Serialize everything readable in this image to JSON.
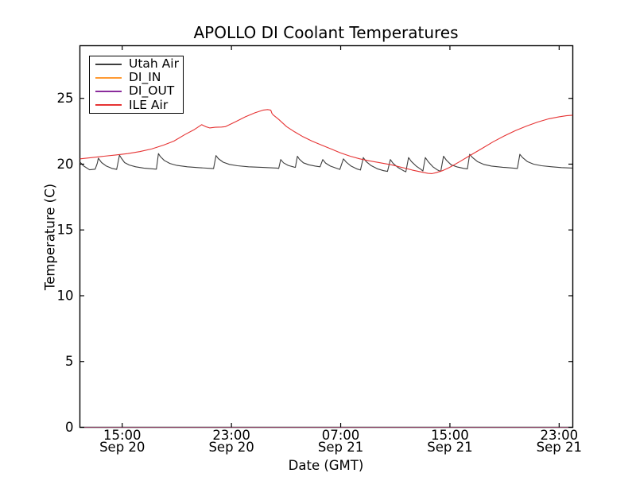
{
  "figure": {
    "background": "#ffffff",
    "axis_color": "#000000"
  },
  "chart_data": {
    "type": "line",
    "title": "APOLLO DI Coolant Temperatures",
    "xlabel": "Date (GMT)",
    "ylabel": "Temperature (C)",
    "grid": false,
    "legend_position": "upper-left",
    "axis_color": "#000000",
    "x_unit": "hours since Sep 20 00:00 GMT",
    "xlim": [
      11.9,
      48.0
    ],
    "ylim": [
      0,
      29
    ],
    "y_ticks": [
      0,
      5,
      10,
      15,
      20,
      25
    ],
    "x_ticks": [
      {
        "t": 15,
        "time": "15:00",
        "date": "Sep 20"
      },
      {
        "t": 23,
        "time": "23:00",
        "date": "Sep 20"
      },
      {
        "t": 31,
        "time": "07:00",
        "date": "Sep 21"
      },
      {
        "t": 39,
        "time": "15:00",
        "date": "Sep 21"
      },
      {
        "t": 47,
        "time": "23:00",
        "date": "Sep 21"
      }
    ],
    "series": [
      {
        "name": "Utah Air",
        "color": "#3d3d3d",
        "opacity": 1,
        "points": [
          [
            11.92,
            20.15
          ],
          [
            12.15,
            19.88
          ],
          [
            12.61,
            19.57
          ],
          [
            13.02,
            19.62
          ],
          [
            13.17,
            20.05
          ],
          [
            13.25,
            20.45
          ],
          [
            13.49,
            20.12
          ],
          [
            13.84,
            19.85
          ],
          [
            14.24,
            19.68
          ],
          [
            14.59,
            19.6
          ],
          [
            14.8,
            20.68
          ],
          [
            14.94,
            20.45
          ],
          [
            15.17,
            20.12
          ],
          [
            15.52,
            19.93
          ],
          [
            15.99,
            19.8
          ],
          [
            16.57,
            19.7
          ],
          [
            17.15,
            19.65
          ],
          [
            17.5,
            19.62
          ],
          [
            17.65,
            20.8
          ],
          [
            17.79,
            20.58
          ],
          [
            18.08,
            20.28
          ],
          [
            18.49,
            20.05
          ],
          [
            19.01,
            19.9
          ],
          [
            19.77,
            19.8
          ],
          [
            20.64,
            19.73
          ],
          [
            21.46,
            19.68
          ],
          [
            21.69,
            19.66
          ],
          [
            21.87,
            20.65
          ],
          [
            22.04,
            20.42
          ],
          [
            22.39,
            20.15
          ],
          [
            22.85,
            19.98
          ],
          [
            23.44,
            19.88
          ],
          [
            24.25,
            19.8
          ],
          [
            25.3,
            19.75
          ],
          [
            26.34,
            19.7
          ],
          [
            26.46,
            19.68
          ],
          [
            26.61,
            20.35
          ],
          [
            26.81,
            20.1
          ],
          [
            27.16,
            19.9
          ],
          [
            27.51,
            19.8
          ],
          [
            27.68,
            19.75
          ],
          [
            27.83,
            20.6
          ],
          [
            27.97,
            20.38
          ],
          [
            28.27,
            20.1
          ],
          [
            28.67,
            19.95
          ],
          [
            29.14,
            19.85
          ],
          [
            29.49,
            19.8
          ],
          [
            29.69,
            20.35
          ],
          [
            29.89,
            20.08
          ],
          [
            30.24,
            19.85
          ],
          [
            30.65,
            19.7
          ],
          [
            30.94,
            19.6
          ],
          [
            31.2,
            20.4
          ],
          [
            31.41,
            20.15
          ],
          [
            31.76,
            19.85
          ],
          [
            32.16,
            19.65
          ],
          [
            32.45,
            19.55
          ],
          [
            32.66,
            20.5
          ],
          [
            32.86,
            20.2
          ],
          [
            33.21,
            19.9
          ],
          [
            33.68,
            19.65
          ],
          [
            34.14,
            19.5
          ],
          [
            34.43,
            19.45
          ],
          [
            34.64,
            20.35
          ],
          [
            34.84,
            20.05
          ],
          [
            35.19,
            19.75
          ],
          [
            35.6,
            19.5
          ],
          [
            35.77,
            19.42
          ],
          [
            35.97,
            20.5
          ],
          [
            36.18,
            20.2
          ],
          [
            36.53,
            19.85
          ],
          [
            36.88,
            19.6
          ],
          [
            37.02,
            19.48
          ],
          [
            37.2,
            20.5
          ],
          [
            37.4,
            20.2
          ],
          [
            37.75,
            19.8
          ],
          [
            38.1,
            19.55
          ],
          [
            38.33,
            19.45
          ],
          [
            38.53,
            20.6
          ],
          [
            38.74,
            20.3
          ],
          [
            39.09,
            19.95
          ],
          [
            39.55,
            19.78
          ],
          [
            40.02,
            19.68
          ],
          [
            40.28,
            19.64
          ],
          [
            40.45,
            20.75
          ],
          [
            40.66,
            20.5
          ],
          [
            41.01,
            20.2
          ],
          [
            41.47,
            19.98
          ],
          [
            42.05,
            19.85
          ],
          [
            42.87,
            19.76
          ],
          [
            43.62,
            19.7
          ],
          [
            43.94,
            19.67
          ],
          [
            44.12,
            20.75
          ],
          [
            44.32,
            20.5
          ],
          [
            44.67,
            20.2
          ],
          [
            45.13,
            20.0
          ],
          [
            45.72,
            19.88
          ],
          [
            46.47,
            19.8
          ],
          [
            47.17,
            19.74
          ],
          [
            47.99,
            19.7
          ]
        ]
      },
      {
        "name": "DI_IN",
        "color": "#ff9a33",
        "opacity": 0.55,
        "points": [
          [
            11.92,
            0
          ],
          [
            47.99,
            0
          ]
        ]
      },
      {
        "name": "DI_OUT",
        "color": "#8a2d9c",
        "opacity": 0.55,
        "points": [
          [
            11.92,
            0
          ],
          [
            47.99,
            0
          ]
        ]
      },
      {
        "name": "ILE Air",
        "color": "#e63333",
        "opacity": 1,
        "points": [
          [
            11.92,
            20.4
          ],
          [
            12.79,
            20.5
          ],
          [
            13.66,
            20.6
          ],
          [
            14.53,
            20.7
          ],
          [
            15.41,
            20.8
          ],
          [
            16.28,
            20.95
          ],
          [
            17.15,
            21.15
          ],
          [
            18.03,
            21.45
          ],
          [
            18.78,
            21.75
          ],
          [
            19.6,
            22.25
          ],
          [
            20.24,
            22.6
          ],
          [
            20.82,
            23.0
          ],
          [
            21.11,
            22.85
          ],
          [
            21.4,
            22.75
          ],
          [
            21.81,
            22.8
          ],
          [
            22.27,
            22.82
          ],
          [
            22.56,
            22.85
          ],
          [
            23.26,
            23.2
          ],
          [
            24.02,
            23.6
          ],
          [
            24.72,
            23.9
          ],
          [
            25.3,
            24.1
          ],
          [
            25.65,
            24.15
          ],
          [
            25.88,
            24.1
          ],
          [
            25.97,
            23.85
          ],
          [
            26.05,
            23.75
          ],
          [
            26.46,
            23.4
          ],
          [
            27.04,
            22.85
          ],
          [
            27.63,
            22.45
          ],
          [
            28.21,
            22.1
          ],
          [
            28.9,
            21.75
          ],
          [
            29.6,
            21.45
          ],
          [
            30.3,
            21.15
          ],
          [
            31.0,
            20.85
          ],
          [
            31.7,
            20.6
          ],
          [
            32.4,
            20.4
          ],
          [
            33.1,
            20.25
          ],
          [
            33.91,
            20.1
          ],
          [
            34.72,
            19.95
          ],
          [
            35.48,
            19.75
          ],
          [
            36.24,
            19.55
          ],
          [
            36.93,
            19.4
          ],
          [
            37.4,
            19.3
          ],
          [
            37.69,
            19.28
          ],
          [
            37.98,
            19.35
          ],
          [
            38.45,
            19.5
          ],
          [
            38.97,
            19.75
          ],
          [
            39.73,
            20.2
          ],
          [
            40.54,
            20.7
          ],
          [
            41.36,
            21.2
          ],
          [
            42.17,
            21.7
          ],
          [
            42.99,
            22.15
          ],
          [
            43.8,
            22.55
          ],
          [
            44.62,
            22.9
          ],
          [
            45.43,
            23.2
          ],
          [
            46.25,
            23.45
          ],
          [
            47.0,
            23.6
          ],
          [
            47.52,
            23.68
          ],
          [
            47.99,
            23.72
          ]
        ]
      }
    ]
  }
}
